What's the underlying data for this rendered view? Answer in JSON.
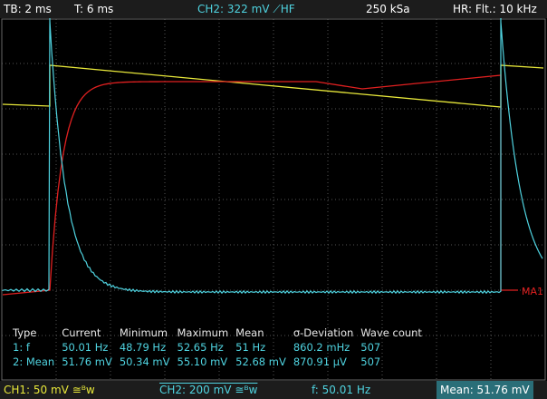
{
  "header": {
    "timebase": "TB: 2 ms",
    "trigger_time": "T: 6 ms",
    "trigger": "CH2: 322 mV ⟋HF",
    "sample_rate": "250 kSa",
    "filter": "HR: Flt.: 10 kHz"
  },
  "trace_label": "MA1",
  "table": {
    "columns": [
      "Type",
      "Current",
      "Minimum",
      "Maximum",
      "Mean",
      "σ-Deviation",
      "Wave count"
    ],
    "rows": [
      [
        "1: f",
        "50.01 Hz",
        "48.79 Hz",
        "52.65 Hz",
        "51 Hz",
        "860.2 mHz",
        "507"
      ],
      [
        "2: Mean",
        "51.76 mV",
        "50.34 mV",
        "55.10 mV",
        "52.68 mV",
        "870.91 µV",
        "507"
      ]
    ]
  },
  "footer": {
    "ch1": "CH1: 50 mV ≅ᴮw",
    "ch2": "CH2: 200 mV ≅ᴮw",
    "freq": "f: 50.01 Hz",
    "mean": "Mean: 51.76 mV"
  }
}
